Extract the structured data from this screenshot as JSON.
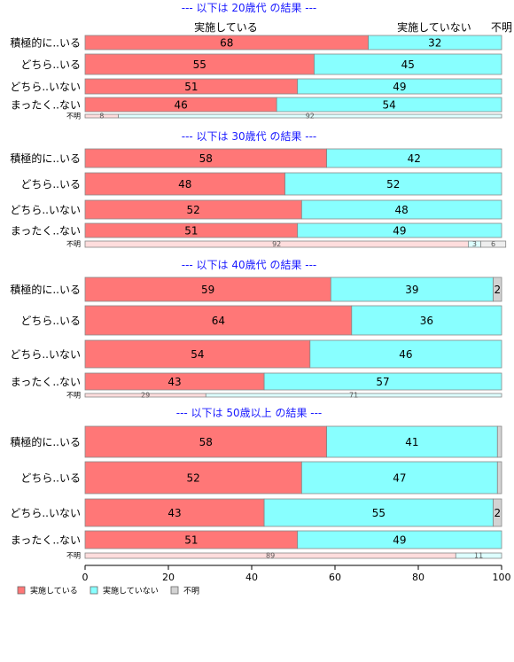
{
  "chart_data": {
    "type": "bar",
    "orientation": "horizontal",
    "stacked": "percent",
    "xlim": [
      0,
      100
    ],
    "x_ticks": [
      "0",
      "20",
      "40",
      "60",
      "80",
      "100"
    ],
    "column_header": [
      "実施している",
      "実施していない",
      "不明"
    ],
    "legend": {
      "placement": "bottom-left",
      "entries": [
        {
          "label": "実施している",
          "color": "#ff7777"
        },
        {
          "label": "実施していない",
          "color": "#88ffff"
        },
        {
          "label": "不明",
          "color": "#d3d3d3"
        }
      ]
    },
    "panels": [
      {
        "title": "--- 以下は 20歳代 の結果 ---",
        "rows": [
          {
            "label": "積極的に..いる",
            "values": [
              68,
              32,
              0
            ],
            "labels": [
              "68",
              "32",
              ""
            ],
            "thin": false
          },
          {
            "label": "どちら..いる",
            "values": [
              55,
              45,
              0
            ],
            "labels": [
              "55",
              "45",
              ""
            ],
            "thin": false
          },
          {
            "label": "どちら..いない",
            "values": [
              51,
              49,
              0
            ],
            "labels": [
              "51",
              "49",
              ""
            ],
            "thin": false
          },
          {
            "label": "まったく..ない",
            "values": [
              46,
              54,
              0
            ],
            "labels": [
              "46",
              "54",
              ""
            ],
            "thin": false
          },
          {
            "label": "不明",
            "values": [
              8,
              92,
              0
            ],
            "labels": [
              "8",
              "92",
              ""
            ],
            "thin": true
          }
        ]
      },
      {
        "title": "--- 以下は 30歳代 の結果 ---",
        "rows": [
          {
            "label": "積極的に..いる",
            "values": [
              58,
              42,
              0
            ],
            "labels": [
              "58",
              "42",
              ""
            ],
            "thin": false
          },
          {
            "label": "どちら..いる",
            "values": [
              48,
              52,
              0
            ],
            "labels": [
              "48",
              "52",
              ""
            ],
            "thin": false
          },
          {
            "label": "どちら..いない",
            "values": [
              52,
              48,
              0
            ],
            "labels": [
              "52",
              "48",
              ""
            ],
            "thin": false
          },
          {
            "label": "まったく..ない",
            "values": [
              51,
              49,
              0
            ],
            "labels": [
              "51",
              "49",
              ""
            ],
            "thin": false
          },
          {
            "label": "不明",
            "values": [
              92,
              3,
              6
            ],
            "labels": [
              "92",
              "3",
              "6"
            ],
            "thin": true
          }
        ]
      },
      {
        "title": "--- 以下は 40歳代 の結果 ---",
        "rows": [
          {
            "label": "積極的に..いる",
            "values": [
              59,
              39,
              2
            ],
            "labels": [
              "59",
              "39",
              "2"
            ],
            "thin": false
          },
          {
            "label": "どちら..いる",
            "values": [
              64,
              36,
              0
            ],
            "labels": [
              "64",
              "36",
              ""
            ],
            "thin": false
          },
          {
            "label": "どちら..いない",
            "values": [
              54,
              46,
              0
            ],
            "labels": [
              "54",
              "46",
              ""
            ],
            "thin": false
          },
          {
            "label": "まったく..ない",
            "values": [
              43,
              57,
              0
            ],
            "labels": [
              "43",
              "57",
              ""
            ],
            "thin": false
          },
          {
            "label": "不明",
            "values": [
              29,
              71,
              0
            ],
            "labels": [
              "29",
              "71",
              ""
            ],
            "thin": true
          }
        ]
      },
      {
        "title": "--- 以下は 50歳以上 の結果 ---",
        "rows": [
          {
            "label": "積極的に..いる",
            "values": [
              58,
              41,
              1
            ],
            "labels": [
              "58",
              "41",
              ""
            ],
            "thin": false
          },
          {
            "label": "どちら..いる",
            "values": [
              52,
              47,
              1
            ],
            "labels": [
              "52",
              "47",
              ""
            ],
            "thin": false
          },
          {
            "label": "どちら..いない",
            "values": [
              43,
              55,
              2
            ],
            "labels": [
              "43",
              "55",
              "2"
            ],
            "thin": false
          },
          {
            "label": "まったく..ない",
            "values": [
              51,
              49,
              0
            ],
            "labels": [
              "51",
              "49",
              ""
            ],
            "thin": false
          },
          {
            "label": "不明",
            "values": [
              89,
              11,
              0
            ],
            "labels": [
              "89",
              "11",
              ""
            ],
            "thin": true
          }
        ]
      }
    ]
  }
}
